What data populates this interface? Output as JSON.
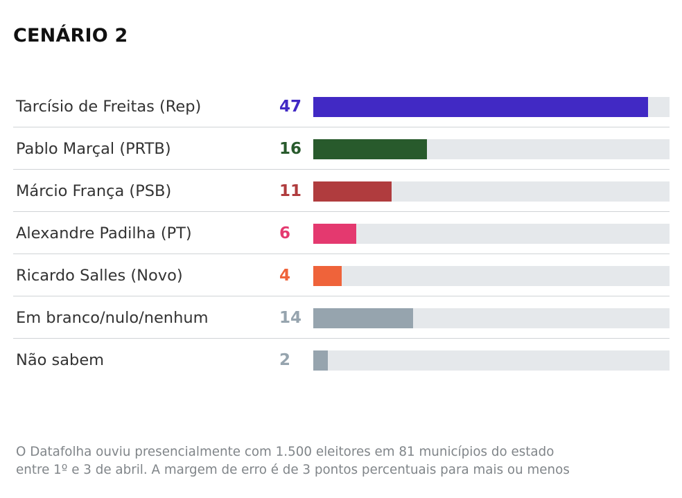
{
  "title": "CENÁRIO 2",
  "chart_data": {
    "type": "bar",
    "orientation": "horizontal",
    "xlim": [
      0,
      50
    ],
    "grid": false,
    "legend": "none",
    "categories": [
      "Tarcísio de Freitas (Rep)",
      "Pablo Marçal (PRTB)",
      "Márcio França (PSB)",
      "Alexandre Padilha (PT)",
      "Ricardo Salles (Novo)",
      "Em branco/nulo/nenhum",
      "Não sabem"
    ],
    "values": [
      47,
      16,
      11,
      6,
      4,
      14,
      2
    ],
    "colors": [
      "#4129c4",
      "#285a2c",
      "#b03c3e",
      "#e4396f",
      "#ef633a",
      "#96a4ae",
      "#96a4ae"
    ]
  },
  "footnote": {
    "line1": "O Datafolha ouviu presencialmente com 1.500 eleitores em 81 municípios do estado",
    "line2": "entre 1º e 3 de abril. A margem de erro é de 3 pontos percentuais para mais ou menos"
  }
}
